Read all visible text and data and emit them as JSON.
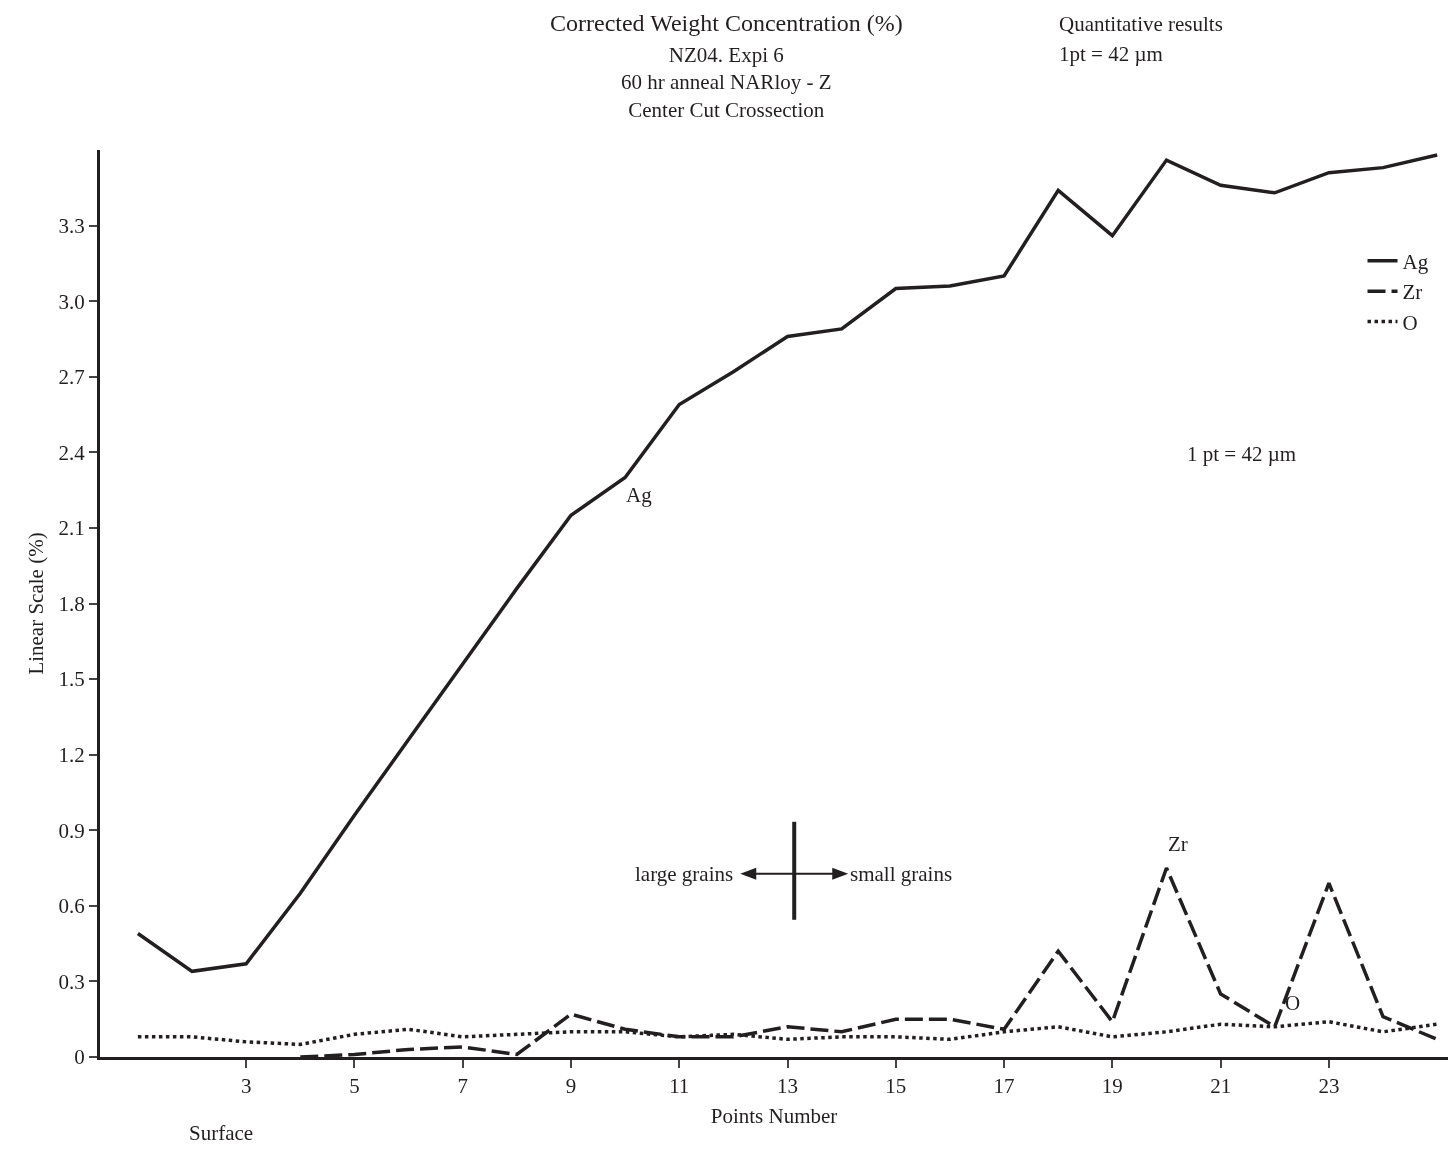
{
  "chart_data": {
    "type": "line",
    "title": "Corrected Weight Concentration (%)",
    "subtitle": "NZ04. Expi 6\n60 hr anneal NARloy - Z\nCenter Cut Crossection",
    "xlabel": "Points Number",
    "ylabel": "Linear Scale (%)",
    "x": [
      1,
      2,
      3,
      4,
      5,
      6,
      7,
      8,
      9,
      10,
      11,
      12,
      13,
      14,
      15,
      16,
      17,
      18,
      19,
      20,
      21,
      22,
      23,
      24,
      25
    ],
    "series": [
      {
        "name": "Ag",
        "color": "#231f20",
        "line_style": "solid",
        "values": [
          0.49,
          0.34,
          0.37,
          0.65,
          0.96,
          1.26,
          1.56,
          1.86,
          2.15,
          2.3,
          2.59,
          2.72,
          2.86,
          2.89,
          3.05,
          3.06,
          3.1,
          3.44,
          3.26,
          3.56,
          3.46,
          3.43,
          3.51,
          3.53,
          3.58
        ]
      },
      {
        "name": "Zr",
        "color": "#231f20",
        "line_style": "dashed",
        "values": [
          null,
          null,
          null,
          0,
          0.01,
          0.03,
          0.04,
          0.01,
          0.17,
          0.11,
          0.08,
          0.08,
          0.12,
          0.1,
          0.15,
          0.15,
          0.11,
          0.42,
          0.14,
          0.75,
          0.25,
          0.12,
          0.69,
          0.16,
          0.07
        ]
      },
      {
        "name": "O",
        "color": "#231f20",
        "line_style": "dotted",
        "values": [
          0.08,
          0.08,
          0.06,
          0.05,
          0.09,
          0.11,
          0.08,
          0.09,
          0.1,
          0.1,
          0.08,
          0.09,
          0.07,
          0.08,
          0.08,
          0.07,
          0.1,
          0.12,
          0.08,
          0.1,
          0.13,
          0.12,
          0.14,
          0.1,
          0.13
        ]
      }
    ],
    "xlim": [
      0.3,
      25.2
    ],
    "xticks": [
      3,
      5,
      7,
      9,
      11,
      13,
      15,
      17,
      19,
      21,
      23
    ],
    "ylim": [
      0,
      3.6
    ],
    "yticks": [
      0,
      0.3,
      0.6,
      0.9,
      1.2,
      1.5,
      1.8,
      2.1,
      2.4,
      2.7,
      {
        "value": 3,
        "label": "3.0"
      },
      3.3
    ],
    "grid": false,
    "legend": "top right",
    "marker": "none",
    "annotations": [
      "Ag",
      "Zr",
      "O",
      "Quantitative results",
      "1pt = 42 µm",
      "1 pt = 42 µm",
      "Surface",
      "large grains",
      "small grains"
    ]
  }
}
